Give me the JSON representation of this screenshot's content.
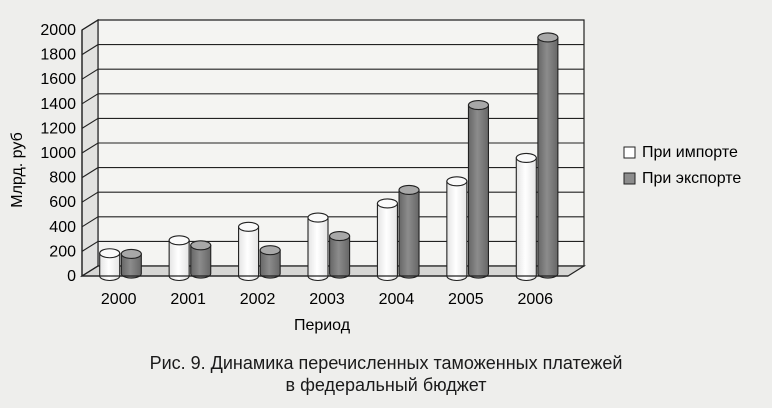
{
  "chart_data": {
    "type": "bar",
    "style": "3d-cylinder",
    "categories": [
      "2000",
      "2001",
      "2002",
      "2003",
      "2004",
      "2005",
      "2006"
    ],
    "series": [
      {
        "name": "При импорте",
        "values": [
          185,
          290,
          400,
          475,
          590,
          770,
          960
        ],
        "color": "#ffffff"
      },
      {
        "name": "При экспорте",
        "values": [
          160,
          230,
          190,
          305,
          680,
          1370,
          1920
        ],
        "color": "#8c8c8c"
      }
    ],
    "yticks": [
      0,
      200,
      400,
      600,
      800,
      1000,
      1200,
      1400,
      1600,
      1800,
      2000
    ],
    "ylim": [
      0,
      2000
    ],
    "xlabel": "Период",
    "ylabel": "Млрд. руб",
    "grid": true,
    "legend_position": "right"
  },
  "caption": {
    "line1": "Рис. 9. Динамика перечисленных таможенных платежей",
    "line2": "в федеральный бюджет"
  }
}
